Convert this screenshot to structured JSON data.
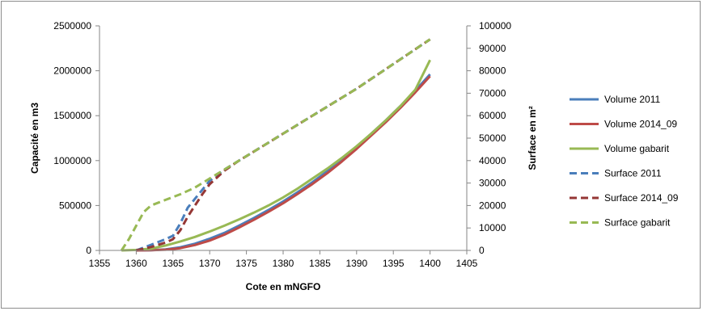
{
  "chart_data": {
    "type": "line",
    "xlabel": "Cote en mNGFO",
    "ylabel_left": "Capacité en m3",
    "ylabel_right": "Surface en m²",
    "xlim": [
      1355,
      1405
    ],
    "xticks": [
      1355,
      1360,
      1365,
      1370,
      1375,
      1380,
      1385,
      1390,
      1395,
      1400,
      1405
    ],
    "ylim_left": [
      0,
      2500000
    ],
    "yticks_left": [
      0,
      500000,
      1000000,
      1500000,
      2000000,
      2500000
    ],
    "ylim_right": [
      0,
      100000
    ],
    "yticks_right": [
      0,
      10000,
      20000,
      30000,
      40000,
      50000,
      60000,
      70000,
      80000,
      90000,
      100000
    ],
    "grid": false,
    "legend_position": "right",
    "series": [
      {
        "name": "Volume 2011",
        "axis": "left",
        "color": "#4a7ebb",
        "dash": "solid",
        "x": [
          1360,
          1362,
          1364,
          1366,
          1368,
          1370,
          1372,
          1374,
          1376,
          1378,
          1380,
          1382,
          1384,
          1386,
          1388,
          1390,
          1392,
          1394,
          1396,
          1398,
          1400
        ],
        "y": [
          0,
          3000,
          12000,
          35000,
          75000,
          130000,
          195000,
          275000,
          360000,
          450000,
          545000,
          650000,
          760000,
          880000,
          1010000,
          1150000,
          1300000,
          1450000,
          1610000,
          1780000,
          1960000
        ]
      },
      {
        "name": "Volume 2014_09",
        "axis": "left",
        "color": "#be4b48",
        "dash": "solid",
        "x": [
          1360,
          1362,
          1364,
          1366,
          1368,
          1370,
          1372,
          1374,
          1376,
          1378,
          1380,
          1382,
          1384,
          1386,
          1388,
          1390,
          1392,
          1394,
          1396,
          1398,
          1400
        ],
        "y": [
          0,
          2000,
          8000,
          25000,
          60000,
          110000,
          175000,
          255000,
          340000,
          430000,
          525000,
          630000,
          740000,
          860000,
          990000,
          1130000,
          1280000,
          1430000,
          1590000,
          1760000,
          1940000
        ]
      },
      {
        "name": "Volume gabarit",
        "axis": "left",
        "color": "#98b954",
        "dash": "solid",
        "x": [
          1358,
          1360,
          1362,
          1364,
          1366,
          1368,
          1370,
          1372,
          1374,
          1376,
          1378,
          1380,
          1382,
          1384,
          1386,
          1388,
          1390,
          1392,
          1394,
          1396,
          1398,
          1400
        ],
        "y": [
          0,
          5000,
          20000,
          55000,
          100000,
          150000,
          210000,
          275000,
          345000,
          420000,
          500000,
          590000,
          690000,
          800000,
          910000,
          1030000,
          1160000,
          1300000,
          1450000,
          1610000,
          1790000,
          2120000
        ]
      },
      {
        "name": "Surface 2011",
        "axis": "right",
        "color": "#4a7ebb",
        "dash": "dashed",
        "x": [
          1360,
          1362,
          1364,
          1365,
          1366,
          1367,
          1368,
          1369,
          1370,
          1372,
          1374,
          1376,
          1378,
          1380,
          1385,
          1390,
          1395,
          1400
        ],
        "y": [
          0,
          2500,
          5000,
          6500,
          12000,
          19000,
          23000,
          27000,
          31000,
          36000,
          40000,
          44000,
          48000,
          52000,
          62000,
          72000,
          83000,
          94000
        ]
      },
      {
        "name": "Surface 2014_09",
        "axis": "right",
        "color": "#953735",
        "dash": "dashed",
        "x": [
          1360,
          1362,
          1364,
          1365,
          1366,
          1367,
          1368,
          1369,
          1370,
          1372,
          1374,
          1376,
          1378,
          1380,
          1385,
          1390,
          1395,
          1400
        ],
        "y": [
          0,
          1500,
          3500,
          5000,
          9000,
          15000,
          20000,
          25000,
          29500,
          35500,
          40000,
          44000,
          48000,
          52000,
          62000,
          72000,
          83000,
          94000
        ]
      },
      {
        "name": "Surface gabarit",
        "axis": "right",
        "color": "#98b954",
        "dash": "dashed",
        "x": [
          1358,
          1359,
          1360,
          1361,
          1362,
          1364,
          1366,
          1368,
          1370,
          1372,
          1374,
          1376,
          1378,
          1380,
          1385,
          1390,
          1395,
          1400
        ],
        "y": [
          0,
          5000,
          11000,
          17000,
          20000,
          22500,
          25000,
          28000,
          32000,
          36000,
          40000,
          44000,
          48000,
          52000,
          62000,
          72000,
          83000,
          94000
        ]
      }
    ]
  }
}
